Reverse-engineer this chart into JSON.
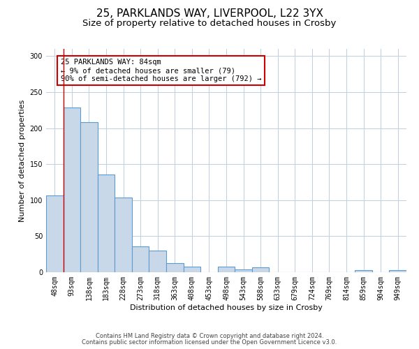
{
  "title": "25, PARKLANDS WAY, LIVERPOOL, L22 3YX",
  "subtitle": "Size of property relative to detached houses in Crosby",
  "xlabel": "Distribution of detached houses by size in Crosby",
  "ylabel": "Number of detached properties",
  "categories": [
    "48sqm",
    "93sqm",
    "138sqm",
    "183sqm",
    "228sqm",
    "273sqm",
    "318sqm",
    "363sqm",
    "408sqm",
    "453sqm",
    "498sqm",
    "543sqm",
    "588sqm",
    "633sqm",
    "679sqm",
    "724sqm",
    "769sqm",
    "814sqm",
    "859sqm",
    "904sqm",
    "949sqm"
  ],
  "values": [
    107,
    229,
    208,
    136,
    104,
    36,
    30,
    13,
    8,
    0,
    8,
    4,
    7,
    0,
    0,
    0,
    0,
    0,
    3,
    0,
    3
  ],
  "bar_color": "#c8d8e8",
  "bar_edge_color": "#5b9bd5",
  "bar_edge_width": 0.8,
  "vline_color": "#cc0000",
  "vline_x_index": 1,
  "annotation_box_text": "25 PARKLANDS WAY: 84sqm\n← 9% of detached houses are smaller (79)\n90% of semi-detached houses are larger (792) →",
  "annotation_box_color": "#cc0000",
  "ylim": [
    0,
    310
  ],
  "yticks": [
    0,
    50,
    100,
    150,
    200,
    250,
    300
  ],
  "footer_line1": "Contains HM Land Registry data © Crown copyright and database right 2024.",
  "footer_line2": "Contains public sector information licensed under the Open Government Licence v3.0.",
  "background_color": "#ffffff",
  "grid_color": "#c0cfe0",
  "title_fontsize": 11,
  "subtitle_fontsize": 9.5,
  "axis_label_fontsize": 8,
  "tick_fontsize": 7,
  "annotation_fontsize": 7.5,
  "footer_fontsize": 6
}
